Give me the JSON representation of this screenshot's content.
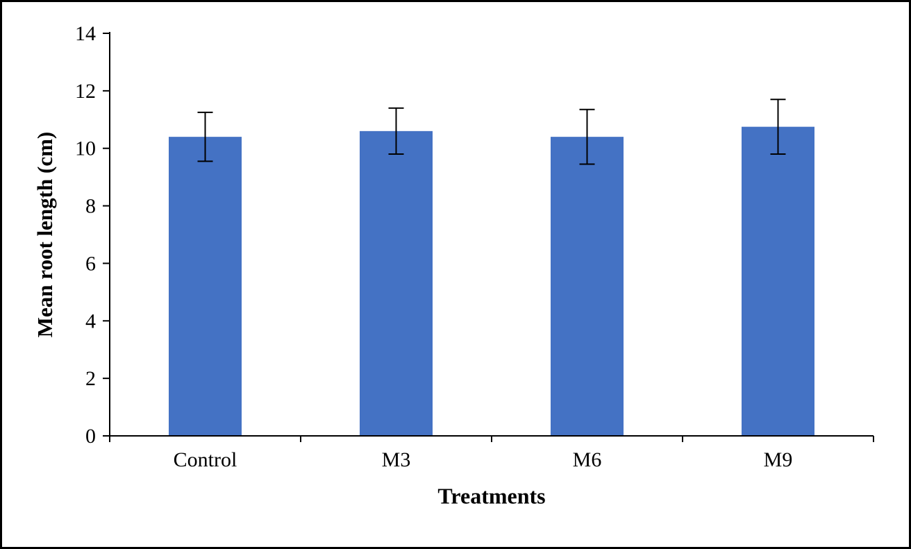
{
  "chart_data": {
    "type": "bar",
    "title": "",
    "xlabel": "Treatments",
    "ylabel": "Mean root length (cm)",
    "categories": [
      "Control",
      "M3",
      "M6",
      "M9"
    ],
    "values": [
      10.4,
      10.6,
      10.4,
      10.75
    ],
    "errors": [
      0.85,
      0.8,
      0.95,
      0.95
    ],
    "ylim": [
      0,
      14
    ],
    "ytick_step": 2,
    "grid": false,
    "legend": "none",
    "bar_color": "#4472C4",
    "error_bar_color": "#000000",
    "axis_color": "#000000",
    "tick_label_font_size": 30,
    "category_label_font_size": 30
  }
}
